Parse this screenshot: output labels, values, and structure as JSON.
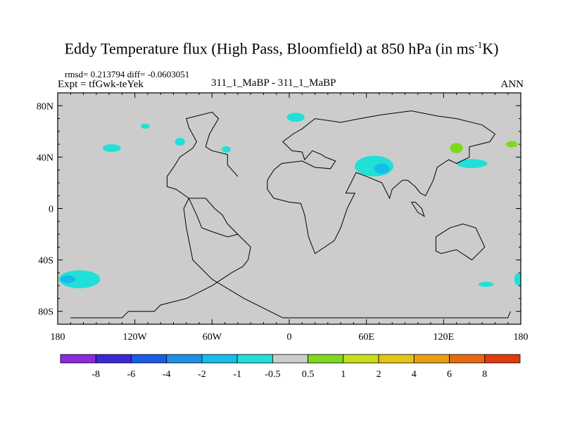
{
  "chart_data": {
    "type": "heatmap",
    "title": {
      "main": "Eddy Temperature flux (High Pass, Bloomfield) at 850 hPa (in ms",
      "sup": "-1",
      "tail": "K)"
    },
    "left_subtitle_top": "rmsd= 0.213794 diff= -0.0603051",
    "left_subtitle": "Expt = tfGwk-teYek",
    "center_subtitle": "311_1_MaBP - 311_1_MaBP",
    "right_subtitle": "ANN",
    "x_range": [
      -180,
      180
    ],
    "y_range": [
      -90,
      90
    ],
    "x_ticks": [
      {
        "value": -180,
        "label": "180"
      },
      {
        "value": -120,
        "label": "120W"
      },
      {
        "value": -60,
        "label": "60W"
      },
      {
        "value": 0,
        "label": "0"
      },
      {
        "value": 60,
        "label": "60E"
      },
      {
        "value": 120,
        "label": "120E"
      },
      {
        "value": 180,
        "label": "180"
      }
    ],
    "y_ticks": [
      {
        "value": 80,
        "label": "80N"
      },
      {
        "value": 40,
        "label": "40N"
      },
      {
        "value": 0,
        "label": "0"
      },
      {
        "value": -40,
        "label": "40S"
      },
      {
        "value": -80,
        "label": "80S"
      }
    ],
    "background_color": "#cccccc",
    "colorbar": {
      "colors": [
        "#8a2be2",
        "#3a28d6",
        "#1b5ce6",
        "#1e90e6",
        "#16bde8",
        "#20e0d8",
        "#cccccc",
        "#7ed81e",
        "#c8de1a",
        "#e6c416",
        "#e6a012",
        "#e66a10",
        "#e23a0e"
      ],
      "labels": [
        "-8",
        "-6",
        "-4",
        "-2",
        "-1",
        "-0.5",
        "0.5",
        "1",
        "2",
        "4",
        "6",
        "8"
      ]
    },
    "regions": [
      {
        "name": "N Pacific E",
        "lon": -112,
        "lat": 64,
        "rlon": 3.5,
        "rlat": 2,
        "color": "#20e0d8"
      },
      {
        "name": "N Pacific center",
        "lon": -138,
        "lat": 47,
        "rlon": 7,
        "rlat": 3,
        "color": "#20e0d8"
      },
      {
        "name": "N America W",
        "lon": -85,
        "lat": 52,
        "rlon": 4,
        "rlat": 3,
        "color": "#20e0d8"
      },
      {
        "name": "N America small",
        "lon": -49,
        "lat": 46,
        "rlon": 3.5,
        "rlat": 2.5,
        "color": "#20e0d8"
      },
      {
        "name": "Greenland",
        "lon": 5,
        "lat": 71,
        "rlon": 7,
        "rlat": 3.5,
        "color": "#20e0d8"
      },
      {
        "name": "Tibet",
        "lon": 66,
        "lat": 33,
        "rlon": 15,
        "rlat": 8,
        "color": "#20e0d8"
      },
      {
        "name": "Asia dark",
        "lon": 72,
        "lat": 31,
        "rlon": 6,
        "rlat": 4,
        "color": "#16bde8"
      },
      {
        "name": "NE Pacific",
        "lon": 142,
        "lat": 35,
        "rlon": 12,
        "rlat": 3.5,
        "color": "#20e0d8"
      },
      {
        "name": "Japan green",
        "lon": 130,
        "lat": 47,
        "rlon": 5,
        "rlat": 4,
        "color": "#7ed81e"
      },
      {
        "name": "Date line green",
        "lon": 173,
        "lat": 50,
        "rlon": 4.5,
        "rlat": 2.5,
        "color": "#7ed81e"
      },
      {
        "name": "S Pacific W",
        "lon": -163,
        "lat": -55,
        "rlon": 16,
        "rlat": 7,
        "color": "#20e0d8"
      },
      {
        "name": "S Pacific dark",
        "lon": -172,
        "lat": -55,
        "rlon": 6,
        "rlat": 3,
        "color": "#16bde8"
      },
      {
        "name": "S Pacific E",
        "lon": 153,
        "lat": -59,
        "rlon": 6,
        "rlat": 2,
        "color": "#20e0d8"
      },
      {
        "name": "S Pacific edge",
        "lon": 178,
        "lat": -55,
        "rlon": 3,
        "rlat": 5,
        "color": "#20e0d8"
      }
    ],
    "coastlines": [
      [
        [
          -170,
          -85
        ],
        [
          -130,
          -85
        ],
        [
          -125,
          -80
        ],
        [
          -105,
          -80
        ],
        [
          -100,
          -75
        ],
        [
          -80,
          -70
        ],
        [
          -60,
          -60
        ],
        [
          -45,
          -50
        ],
        [
          -36,
          -45
        ],
        [
          -32,
          -40
        ],
        [
          -30,
          -30
        ],
        [
          -40,
          -20
        ],
        [
          -48,
          -12
        ],
        [
          -52,
          -5
        ],
        [
          -58,
          0
        ],
        [
          -65,
          8
        ],
        [
          -78,
          8
        ],
        [
          -82,
          0
        ],
        [
          -80,
          -15
        ],
        [
          -75,
          -40
        ],
        [
          -60,
          -55
        ],
        [
          -35,
          -70
        ],
        [
          -5,
          -85
        ],
        [
          170,
          -85
        ],
        [
          172,
          -80
        ]
      ],
      [
        [
          -40,
          -20
        ],
        [
          -48,
          -22
        ],
        [
          -60,
          -18
        ],
        [
          -68,
          -15
        ],
        [
          -72,
          -5
        ],
        [
          -78,
          8
        ],
        [
          -88,
          15
        ],
        [
          -95,
          17
        ],
        [
          -95,
          25
        ],
        [
          -90,
          32
        ],
        [
          -85,
          40
        ],
        [
          -75,
          47
        ],
        [
          -72,
          52
        ],
        [
          -78,
          63
        ],
        [
          -80,
          70
        ],
        [
          -60,
          75
        ],
        [
          -55,
          70
        ],
        [
          -62,
          58
        ],
        [
          -65,
          48
        ],
        [
          -60,
          45
        ],
        [
          -48,
          42
        ],
        [
          -48,
          34
        ],
        [
          -40,
          25
        ]
      ],
      [
        [
          -12,
          8
        ],
        [
          -17,
          15
        ],
        [
          -17,
          22
        ],
        [
          -12,
          30
        ],
        [
          -6,
          35
        ],
        [
          10,
          37
        ],
        [
          20,
          32
        ],
        [
          32,
          31
        ],
        [
          36,
          37
        ],
        [
          28,
          40
        ],
        [
          25,
          42
        ],
        [
          18,
          45
        ],
        [
          12,
          38
        ],
        [
          10,
          44
        ],
        [
          2,
          45
        ],
        [
          -5,
          52
        ],
        [
          3,
          58
        ],
        [
          10,
          62
        ],
        [
          20,
          70
        ],
        [
          40,
          67
        ],
        [
          55,
          70
        ],
        [
          72,
          73
        ],
        [
          95,
          76
        ],
        [
          115,
          72
        ],
        [
          130,
          70
        ],
        [
          150,
          65
        ],
        [
          160,
          58
        ],
        [
          156,
          52
        ],
        [
          140,
          48
        ],
        [
          140,
          40
        ],
        [
          130,
          35
        ],
        [
          124,
          38
        ],
        [
          115,
          32
        ],
        [
          112,
          22
        ],
        [
          106,
          10
        ],
        [
          102,
          12
        ],
        [
          98,
          17
        ],
        [
          92,
          22
        ],
        [
          88,
          22
        ],
        [
          80,
          15
        ],
        [
          78,
          8
        ],
        [
          72,
          20
        ],
        [
          60,
          25
        ],
        [
          52,
          28
        ],
        [
          44,
          12
        ],
        [
          51,
          12
        ],
        [
          45,
          0
        ],
        [
          40,
          -15
        ],
        [
          35,
          -25
        ],
        [
          20,
          -35
        ],
        [
          15,
          -22
        ],
        [
          12,
          -5
        ],
        [
          9,
          4
        ],
        [
          0,
          5
        ],
        [
          -12,
          8
        ]
      ],
      [
        [
          114,
          -22
        ],
        [
          114,
          -33
        ],
        [
          118,
          -35
        ],
        [
          130,
          -32
        ],
        [
          142,
          -40
        ],
        [
          152,
          -30
        ],
        [
          145,
          -15
        ],
        [
          135,
          -12
        ],
        [
          125,
          -15
        ],
        [
          114,
          -22
        ]
      ],
      [
        [
          95,
          5
        ],
        [
          100,
          -3
        ],
        [
          105,
          -6
        ],
        [
          103,
          0
        ],
        [
          98,
          5
        ],
        [
          95,
          5
        ]
      ]
    ]
  }
}
